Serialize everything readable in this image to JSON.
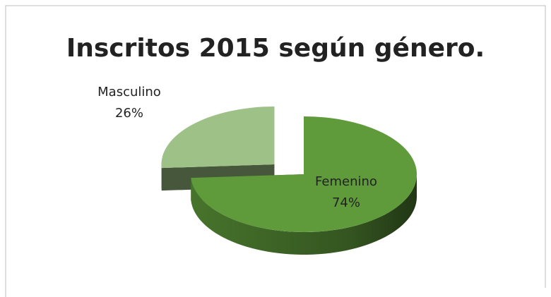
{
  "chart_data": {
    "type": "pie",
    "title": "Inscritos 2015 según género.",
    "categories": [
      "Masculino",
      "Femenino"
    ],
    "values": [
      26,
      74
    ],
    "value_labels": [
      "26%",
      "74%"
    ],
    "colors": [
      "#9dc186",
      "#5f9a3b"
    ],
    "exploded": "Masculino"
  }
}
